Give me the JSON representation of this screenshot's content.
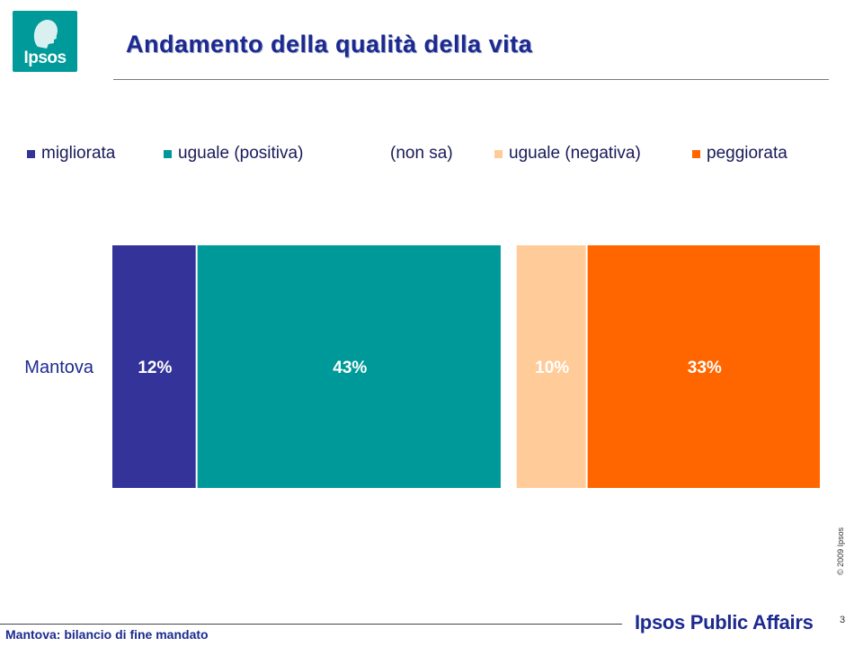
{
  "logo": {
    "text": "Ipsos"
  },
  "title": "Andamento della qualità della vita",
  "colors": {
    "migliorata": "#333399",
    "uguale_positiva": "#009999",
    "non_sa": "#ffffff",
    "uguale_negativa": "#ffcc99",
    "peggiorata": "#ff6600",
    "brand_blue": "#1c2a8f"
  },
  "chart_data": {
    "type": "bar",
    "orientation": "horizontal",
    "stacked": true,
    "categories": [
      "Mantova"
    ],
    "series": [
      {
        "name": "migliorata",
        "values": [
          12
        ],
        "labels": [
          "12%"
        ],
        "color": "#333399"
      },
      {
        "name": "uguale (positiva)",
        "values": [
          43
        ],
        "labels": [
          "43%"
        ],
        "color": "#009999"
      },
      {
        "name": "(non sa)",
        "values": [
          2
        ],
        "labels": [
          ""
        ],
        "color": "#ffffff"
      },
      {
        "name": "uguale (negativa)",
        "values": [
          10
        ],
        "labels": [
          "10%"
        ],
        "color": "#ffcc99"
      },
      {
        "name": "peggiorata",
        "values": [
          33
        ],
        "labels": [
          "33%"
        ],
        "color": "#ff6600"
      }
    ],
    "xlim": [
      0,
      100
    ],
    "legend_position": "top",
    "grid": false
  },
  "copyright": "© 2009 Ipsos",
  "footer": {
    "left_text": "Mantova: bilancio di fine mandato",
    "brand": "Ipsos Public Affairs",
    "page_number": "3"
  }
}
